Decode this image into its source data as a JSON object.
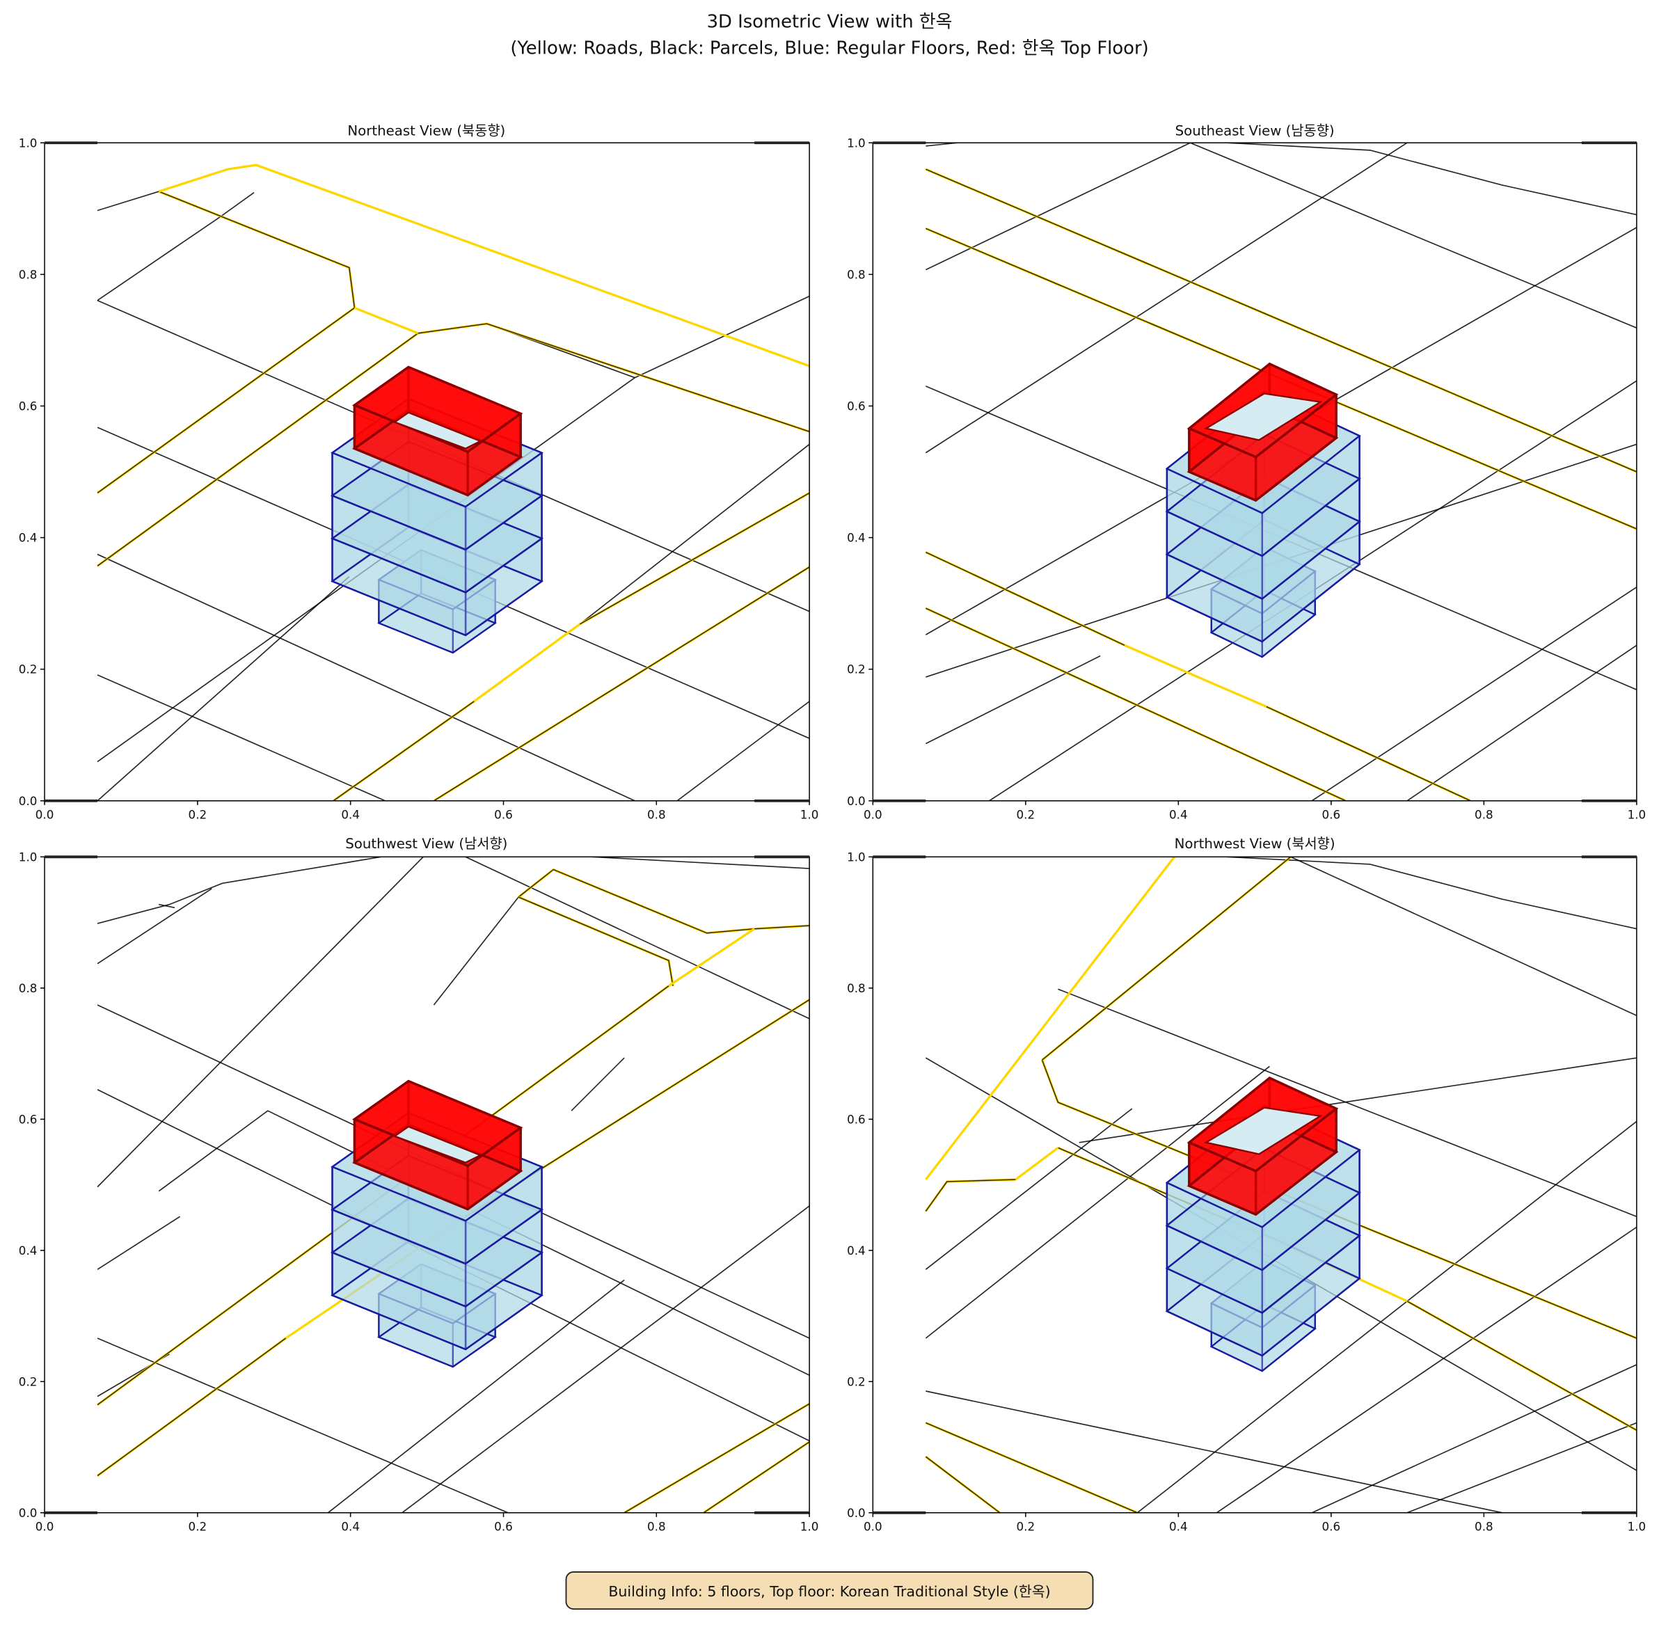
{
  "figure": {
    "title_line1": "3D Isometric View with 한옥",
    "title_line2": "(Yellow: Roads, Black: Parcels, Blue: Regular Floors, Red: 한옥 Top Floor)"
  },
  "panels": [
    {
      "title": "Northeast View (북동향)"
    },
    {
      "title": "Southeast View (남동향)"
    },
    {
      "title": "Southwest View (남서향)"
    },
    {
      "title": "Northwest View (북서향)"
    }
  ],
  "axes": {
    "x_ticks": [
      "0.0",
      "0.2",
      "0.4",
      "0.6",
      "0.8",
      "1.0"
    ],
    "y_ticks": [
      "0.0",
      "0.2",
      "0.4",
      "0.6",
      "0.8",
      "1.0"
    ],
    "xlim": [
      0,
      1
    ],
    "ylim": [
      0,
      1
    ]
  },
  "legend": {
    "roads": "Yellow",
    "parcels": "Black",
    "regular_floors": "Blue",
    "top_floor": "Red"
  },
  "colors": {
    "road": "#FFD700",
    "parcel": "#000000",
    "floor_fill": "#ADD8E6",
    "floor_edge": "#1A1AA0",
    "hanok_fill": "#FF0000",
    "hanok_edge": "#8B0000",
    "info_box": "#F5DEB3"
  },
  "info_box": {
    "text": "Building Info: 5 floors, Top floor: Korean Traditional Style (한옥)",
    "floors": 5
  }
}
